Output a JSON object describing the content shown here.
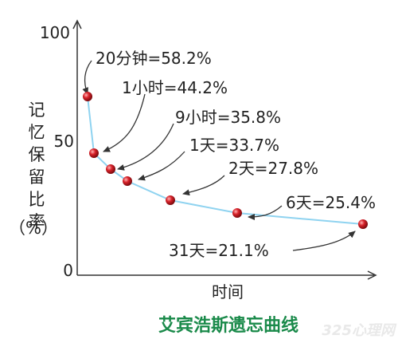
{
  "chart_data": {
    "type": "line",
    "title": "艾宾浩斯遗忘曲线",
    "xlabel": "时间",
    "ylabel_chars": [
      "记",
      "忆",
      "保",
      "留",
      "比",
      "率"
    ],
    "ylabel_unit": "（%）",
    "yticks": [
      "100",
      "50",
      "0"
    ],
    "ylim": [
      0,
      100
    ],
    "series": [
      {
        "points": [
          {
            "label": "",
            "value": 70
          },
          {
            "label": "20分钟=58.2%",
            "value": 58.2
          },
          {
            "label": "1小时=44.2%",
            "value": 44.2
          },
          {
            "label": "9小时=35.8%",
            "value": 35.8
          },
          {
            "label": "1天=33.7%",
            "value": 33.7
          },
          {
            "label": "2天=27.8%",
            "value": 27.8
          },
          {
            "label": "6天=25.4%",
            "value": 25.4
          },
          {
            "label": "31天=21.1%",
            "value": 21.1
          }
        ]
      }
    ],
    "line_color": "#8fd3f0",
    "point_color": "#c0181f"
  },
  "watermark": "325心理网"
}
